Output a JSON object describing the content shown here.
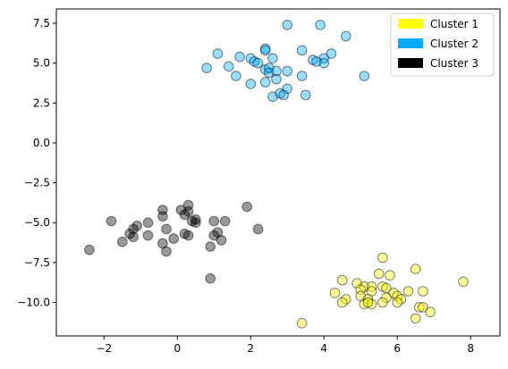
{
  "chart_data": {
    "type": "scatter",
    "title": "",
    "xlabel": "",
    "ylabel": "",
    "xlim": [
      -3.3,
      8.8
    ],
    "ylim": [
      -12.1,
      8.4
    ],
    "xticks": [
      -2,
      0,
      2,
      4,
      6,
      8
    ],
    "yticks": [
      -10.0,
      -7.5,
      -5.0,
      -2.5,
      0.0,
      2.5,
      5.0,
      7.5
    ],
    "grid": false,
    "legend_position": "top-right",
    "series": [
      {
        "name": "Cluster 1",
        "color": "#ffff00",
        "points": [
          [
            5.6,
            -7.2
          ],
          [
            6.5,
            -7.9
          ],
          [
            5.5,
            -8.2
          ],
          [
            5.8,
            -8.3
          ],
          [
            4.5,
            -8.6
          ],
          [
            4.9,
            -8.8
          ],
          [
            5.1,
            -9.0
          ],
          [
            5.3,
            -9.0
          ],
          [
            5.6,
            -9.0
          ],
          [
            5.7,
            -9.1
          ],
          [
            5.0,
            -9.2
          ],
          [
            5.3,
            -9.3
          ],
          [
            4.3,
            -9.4
          ],
          [
            5.9,
            -9.4
          ],
          [
            6.3,
            -9.3
          ],
          [
            6.7,
            -9.3
          ],
          [
            5.0,
            -9.6
          ],
          [
            6.0,
            -9.6
          ],
          [
            4.6,
            -9.8
          ],
          [
            5.2,
            -9.8
          ],
          [
            5.7,
            -9.7
          ],
          [
            6.1,
            -9.8
          ],
          [
            5.1,
            -10.1
          ],
          [
            5.3,
            -10.1
          ],
          [
            4.5,
            -10.0
          ],
          [
            5.6,
            -10.0
          ],
          [
            6.0,
            -10.0
          ],
          [
            6.6,
            -10.3
          ],
          [
            6.7,
            -10.3
          ],
          [
            5.2,
            -10.0
          ],
          [
            6.9,
            -10.6
          ],
          [
            6.5,
            -11.0
          ],
          [
            7.8,
            -8.7
          ],
          [
            3.4,
            -11.3
          ]
        ]
      },
      {
        "name": "Cluster 2",
        "color": "#00aaff",
        "points": [
          [
            3.0,
            7.4
          ],
          [
            3.9,
            7.4
          ],
          [
            4.6,
            6.7
          ],
          [
            2.4,
            5.9
          ],
          [
            3.4,
            5.8
          ],
          [
            2.4,
            5.8
          ],
          [
            1.1,
            5.6
          ],
          [
            1.7,
            5.4
          ],
          [
            2.0,
            5.3
          ],
          [
            2.6,
            5.3
          ],
          [
            4.2,
            5.6
          ],
          [
            4.0,
            5.3
          ],
          [
            3.7,
            5.2
          ],
          [
            3.8,
            5.1
          ],
          [
            4.0,
            5.0
          ],
          [
            2.1,
            5.1
          ],
          [
            2.2,
            5.0
          ],
          [
            2.4,
            4.6
          ],
          [
            2.5,
            4.7
          ],
          [
            2.5,
            4.4
          ],
          [
            1.4,
            4.8
          ],
          [
            0.8,
            4.7
          ],
          [
            3.0,
            4.5
          ],
          [
            2.7,
            4.5
          ],
          [
            2.7,
            4.0
          ],
          [
            2.4,
            3.8
          ],
          [
            2.0,
            3.7
          ],
          [
            1.6,
            4.2
          ],
          [
            3.4,
            4.2
          ],
          [
            5.1,
            4.2
          ],
          [
            3.0,
            3.4
          ],
          [
            2.8,
            3.1
          ],
          [
            2.9,
            3.0
          ],
          [
            2.6,
            2.9
          ],
          [
            3.5,
            3.0
          ]
        ]
      },
      {
        "name": "Cluster 3",
        "color": "#000000",
        "points": [
          [
            0.3,
            -3.9
          ],
          [
            1.9,
            -4.0
          ],
          [
            -0.4,
            -4.2
          ],
          [
            0.1,
            -4.2
          ],
          [
            0.2,
            -4.5
          ],
          [
            0.3,
            -4.3
          ],
          [
            -0.4,
            -4.6
          ],
          [
            -1.8,
            -4.9
          ],
          [
            -0.8,
            -5.0
          ],
          [
            1.0,
            -4.9
          ],
          [
            1.3,
            -4.9
          ],
          [
            0.4,
            -4.9
          ],
          [
            0.5,
            -4.8
          ],
          [
            0.5,
            -5.0
          ],
          [
            -1.1,
            -5.2
          ],
          [
            -1.2,
            -5.4
          ],
          [
            2.2,
            -5.4
          ],
          [
            -0.3,
            -5.4
          ],
          [
            -1.3,
            -5.7
          ],
          [
            -1.2,
            -5.9
          ],
          [
            -0.8,
            -5.8
          ],
          [
            0.2,
            -5.7
          ],
          [
            0.3,
            -5.8
          ],
          [
            1.1,
            -5.6
          ],
          [
            1.0,
            -5.8
          ],
          [
            -0.1,
            -6.0
          ],
          [
            1.2,
            -6.1
          ],
          [
            -1.5,
            -6.2
          ],
          [
            -0.4,
            -6.3
          ],
          [
            0.9,
            -6.5
          ],
          [
            -0.3,
            -6.8
          ],
          [
            -2.4,
            -6.7
          ],
          [
            0.9,
            -8.5
          ]
        ]
      }
    ]
  }
}
